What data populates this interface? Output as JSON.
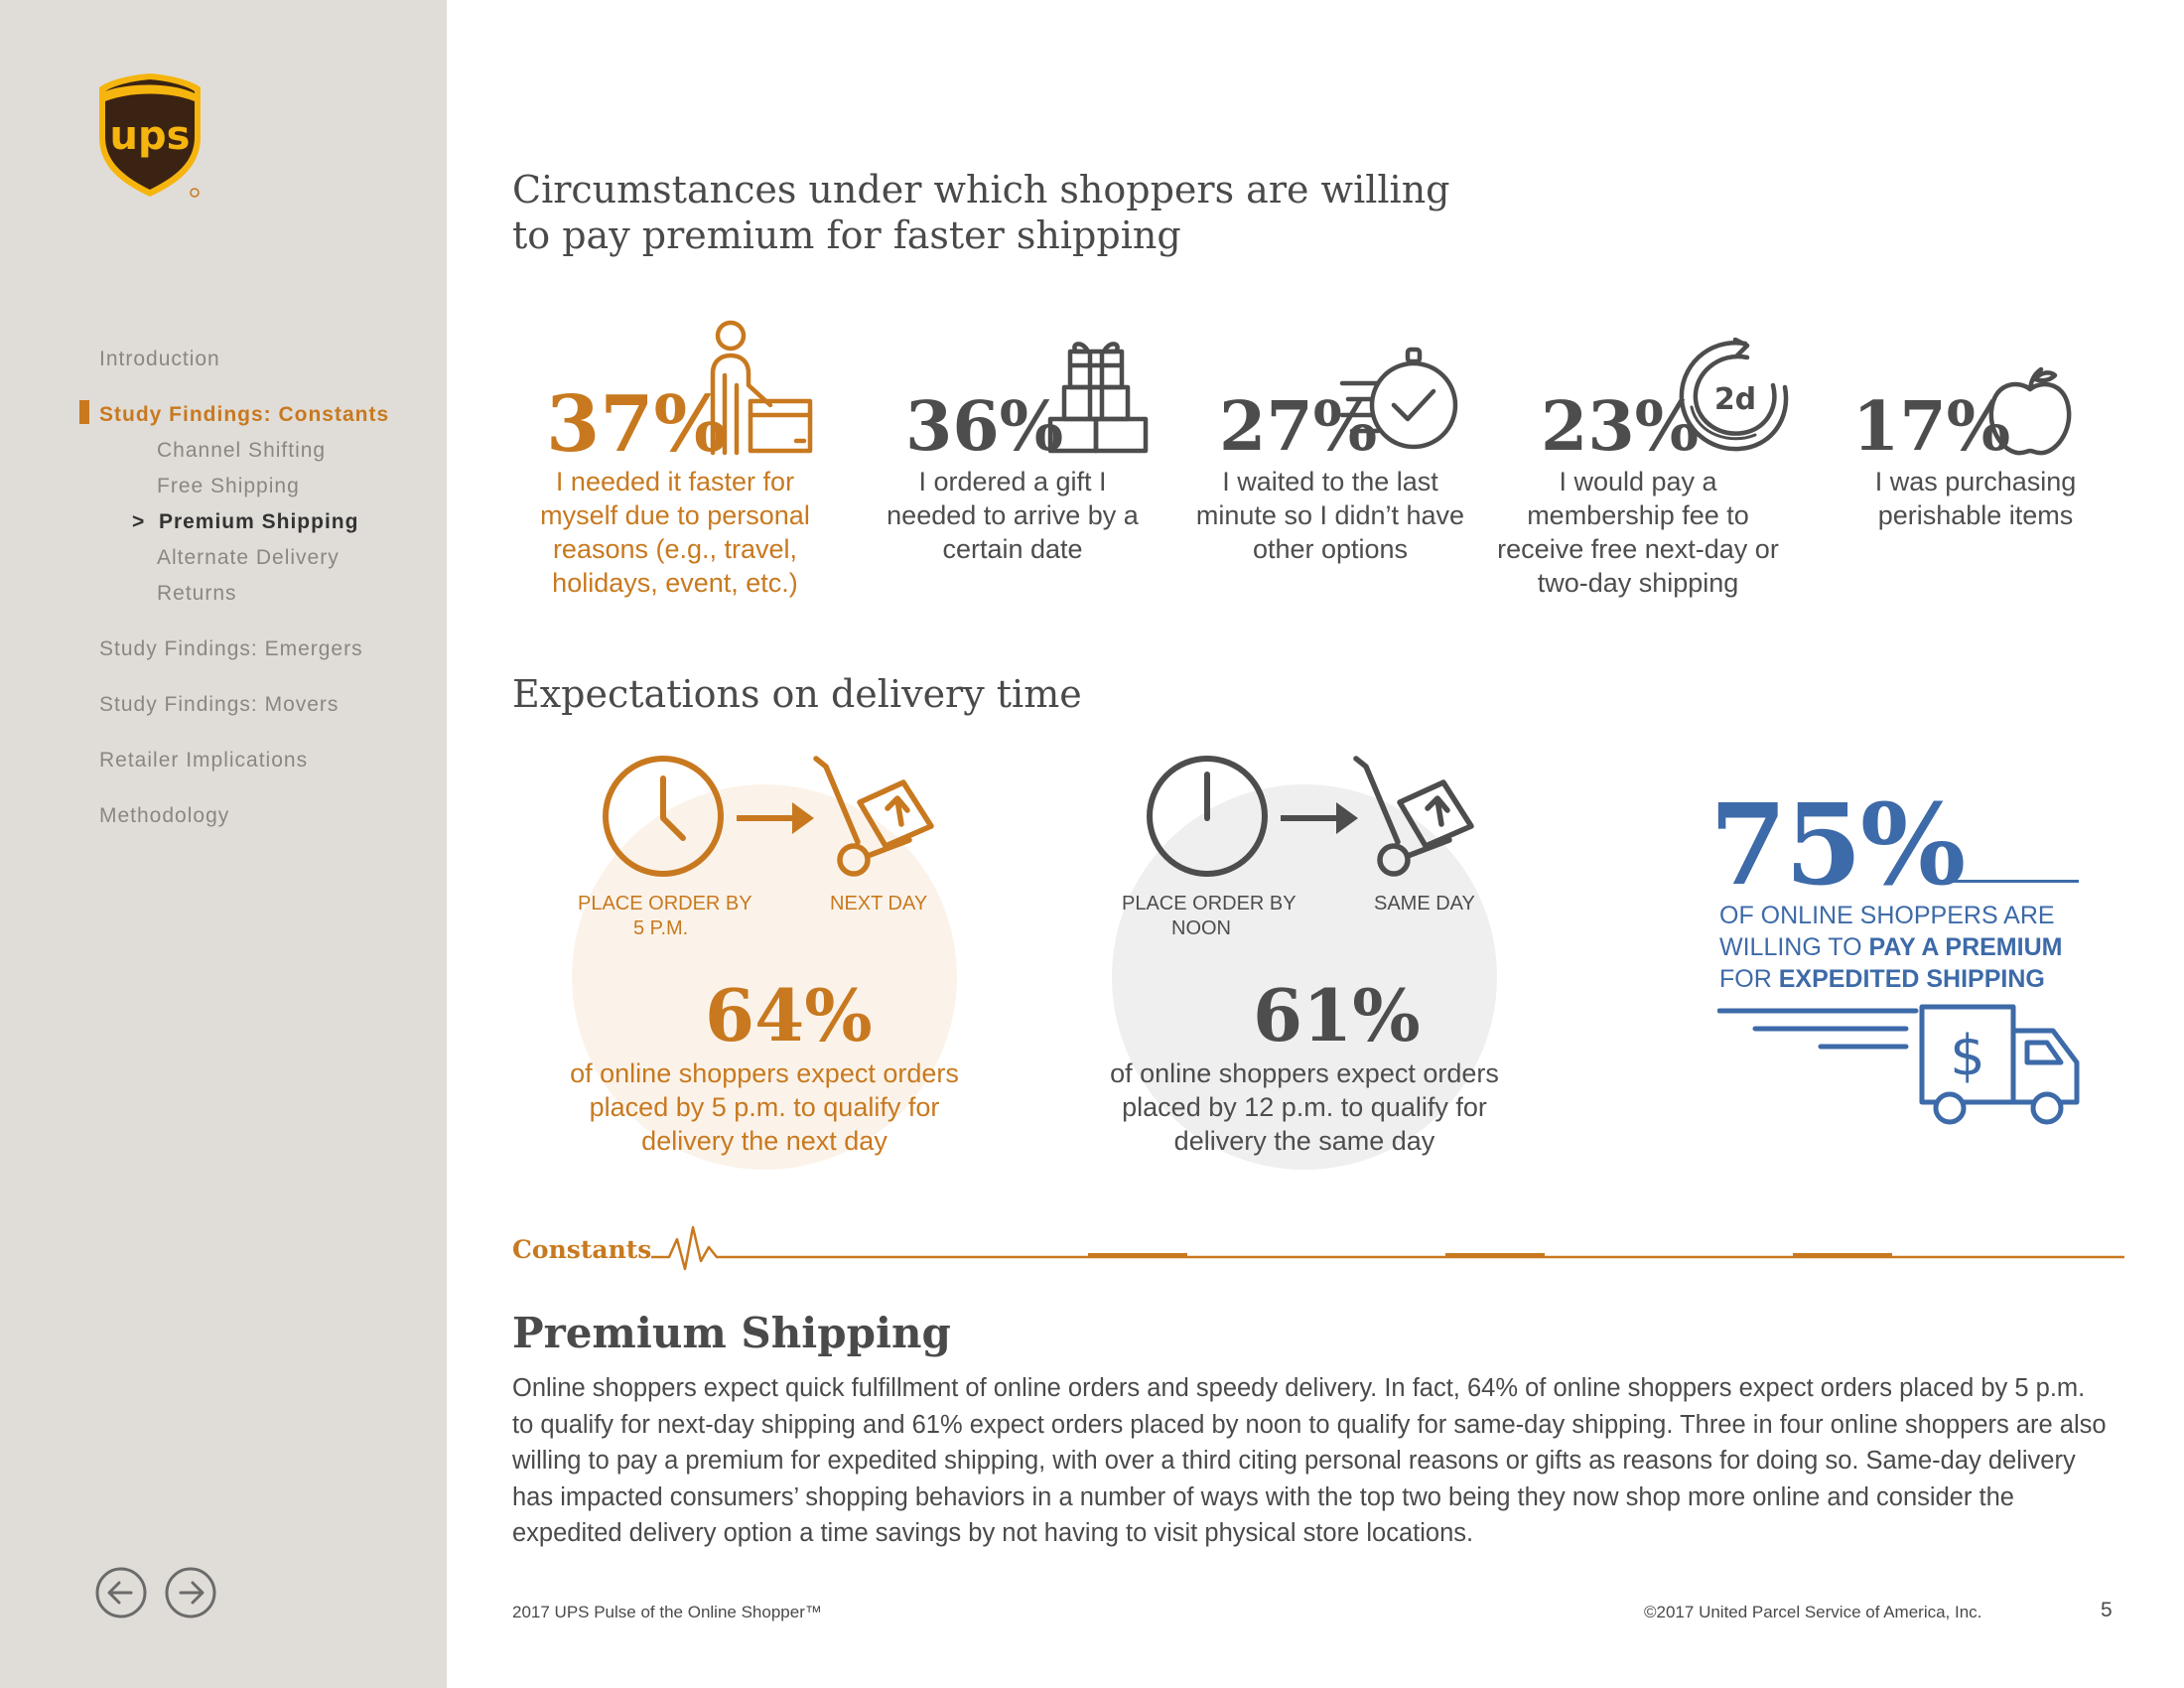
{
  "sidebar": {
    "nav": [
      {
        "label": "Introduction"
      },
      {
        "label": "Study Findings: Constants"
      },
      {
        "label": "Channel Shifting"
      },
      {
        "label": "Free Shipping"
      },
      {
        "label": "Premium Shipping",
        "marker": ">"
      },
      {
        "label": "Alternate Delivery"
      },
      {
        "label": "Returns"
      },
      {
        "label": "Study Findings: Emergers"
      },
      {
        "label": "Study Findings: Movers"
      },
      {
        "label": "Retailer Implications"
      },
      {
        "label": "Methodology"
      }
    ]
  },
  "section1": {
    "title_line1": "Circumstances under which shoppers are willing",
    "title_line2": "to pay premium for faster shipping",
    "stats": [
      {
        "value": "37%",
        "desc": [
          "I needed it faster for",
          "myself due to personal",
          "reasons (e.g., travel,",
          "holidays, event, etc.)"
        ],
        "icon": "person-with-package-icon"
      },
      {
        "value": "36%",
        "desc": [
          "I ordered a gift I",
          "needed to arrive by a",
          "certain date"
        ],
        "icon": "gift-boxes-icon"
      },
      {
        "value": "27%",
        "desc": [
          "I waited to the last",
          "minute so I didn’t have",
          "other options"
        ],
        "icon": "stopwatch-icon"
      },
      {
        "value": "23%",
        "desc": [
          "I would pay a",
          "membership fee to",
          "receive free next-day or",
          "two-day shipping"
        ],
        "icon": "two-day-cycle-icon",
        "icon_text": "2d"
      },
      {
        "value": "17%",
        "desc": [
          "I was purchasing",
          "perishable items"
        ],
        "icon": "apple-icon"
      }
    ]
  },
  "section2": {
    "title": "Expectations on delivery time",
    "next_day": {
      "from_label": [
        "PLACE ORDER BY",
        "5 P.M."
      ],
      "to_label": "NEXT DAY",
      "value": "64%",
      "desc": [
        "of online shoppers expect orders",
        "placed by 5 p.m. to qualify for",
        "delivery the next day"
      ]
    },
    "same_day": {
      "from_label": [
        "PLACE ORDER BY",
        "NOON"
      ],
      "to_label": "SAME DAY",
      "value": "61%",
      "desc": [
        "of online shoppers expect orders",
        "placed by 12 p.m. to qualify for",
        "delivery the same day"
      ]
    },
    "premium": {
      "value": "75%",
      "line1": "OF ONLINE SHOPPERS ARE",
      "line2_a": "WILLING TO ",
      "line2_b": "PAY A PREMIUM",
      "line3_a": "FOR ",
      "line3_b": "EXPEDITED SHIPPING",
      "truck_symbol": "$"
    }
  },
  "section3": {
    "category": "Constants",
    "title": "Premium Shipping",
    "body": "Online shoppers expect quick fulfillment of online orders and speedy delivery. In fact, 64% of online shoppers expect orders placed by 5 p.m. to qualify for next-day shipping and 61% expect orders placed by noon to qualify for same-day shipping. Three in four online shoppers are also willing to pay a premium for expedited shipping, with over a third citing personal reasons or gifts as reasons for doing so. Same-day delivery has impacted consumers’ shopping behaviors in a number of ways with the top two being they now shop more online and consider the expedited delivery option a time savings by not having to visit physical store locations."
  },
  "footer": {
    "left": "2017 UPS Pulse of the Online Shopper™",
    "right": "©2017 United Parcel Service of America, Inc.",
    "page": "5"
  },
  "colors": {
    "accent": "#c8791f",
    "gray": "#4d4d4d",
    "blue": "#3d6aa8",
    "sidebar": "#e0ddd8",
    "ups_brown": "#3b2314",
    "ups_gold": "#f6b50e"
  }
}
